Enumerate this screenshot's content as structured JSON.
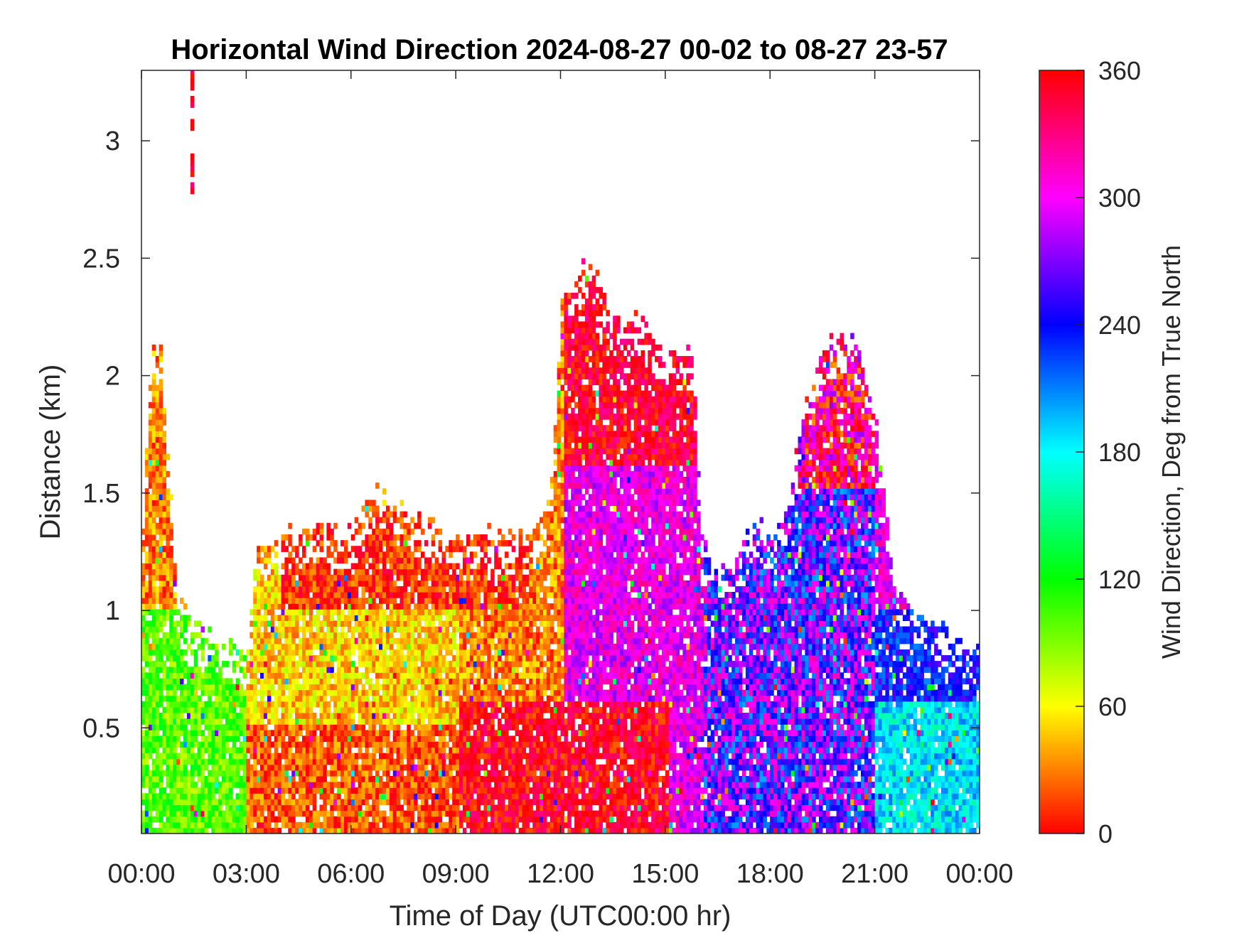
{
  "chart_data": {
    "type": "heatmap",
    "title": "Horizontal Wind Direction 2024-08-27 00-02 to 08-27 23-57",
    "xlabel": "Time of Day (UTC00:00 hr)",
    "ylabel": "Distance (km)",
    "xlim": [
      0,
      24
    ],
    "ylim": [
      0.05,
      3.3
    ],
    "x_ticks": [
      0,
      3,
      6,
      9,
      12,
      15,
      18,
      21,
      24
    ],
    "x_tick_labels": [
      "00:00",
      "03:00",
      "06:00",
      "09:00",
      "12:00",
      "15:00",
      "18:00",
      "21:00",
      "00:00"
    ],
    "y_ticks": [
      0.5,
      1,
      1.5,
      2,
      2.5,
      3
    ],
    "y_tick_labels": [
      "0.5",
      "1",
      "1.5",
      "2",
      "2.5",
      "3"
    ],
    "colorbar": {
      "label": "Wind Direction, Deg from True North",
      "range": [
        0,
        360
      ],
      "ticks": [
        0,
        60,
        120,
        180,
        240,
        300,
        360
      ],
      "tick_labels": [
        "0",
        "60",
        "120",
        "180",
        "240",
        "300",
        "360"
      ],
      "colormap": "hsv"
    },
    "data_top_km_by_hour": [
      [
        0.0,
        1.35
      ],
      [
        0.25,
        2.1
      ],
      [
        0.5,
        2.1
      ],
      [
        0.75,
        1.55
      ],
      [
        1.0,
        1.0
      ],
      [
        1.5,
        0.9
      ],
      [
        2.0,
        0.85
      ],
      [
        3.0,
        0.8
      ],
      [
        3.25,
        1.25
      ],
      [
        4.0,
        1.3
      ],
      [
        5.0,
        1.35
      ],
      [
        6.0,
        1.3
      ],
      [
        6.5,
        1.5
      ],
      [
        7.0,
        1.45
      ],
      [
        8.0,
        1.35
      ],
      [
        9.0,
        1.32
      ],
      [
        10.0,
        1.3
      ],
      [
        11.0,
        1.3
      ],
      [
        11.5,
        1.4
      ],
      [
        11.75,
        1.6
      ],
      [
        12.0,
        2.35
      ],
      [
        12.75,
        2.45
      ],
      [
        13.5,
        2.25
      ],
      [
        14.25,
        2.2
      ],
      [
        15.0,
        2.1
      ],
      [
        15.75,
        2.05
      ],
      [
        16.0,
        1.25
      ],
      [
        16.5,
        1.15
      ],
      [
        17.0,
        1.2
      ],
      [
        17.5,
        1.35
      ],
      [
        18.0,
        1.3
      ],
      [
        18.5,
        1.45
      ],
      [
        19.0,
        1.9
      ],
      [
        19.5,
        2.1
      ],
      [
        20.0,
        2.15
      ],
      [
        20.5,
        2.1
      ],
      [
        21.0,
        1.8
      ],
      [
        21.5,
        1.1
      ],
      [
        22.0,
        1.0
      ],
      [
        22.5,
        0.95
      ],
      [
        23.0,
        0.9
      ],
      [
        23.5,
        0.8
      ],
      [
        24.0,
        0.85
      ]
    ],
    "dominant_direction_deg_regions": [
      {
        "hours": [
          0,
          3
        ],
        "km": [
          0.05,
          1.0
        ],
        "deg": 100
      },
      {
        "hours": [
          3,
          9
        ],
        "km": [
          0.5,
          1.2
        ],
        "deg": 50
      },
      {
        "hours": [
          3,
          9
        ],
        "km": [
          0.05,
          0.5
        ],
        "deg": 20
      },
      {
        "hours": [
          4,
          11
        ],
        "km": [
          1.0,
          1.4
        ],
        "deg": 10
      },
      {
        "hours": [
          9,
          12
        ],
        "km": [
          0.05,
          0.6
        ],
        "deg": 355
      },
      {
        "hours": [
          12,
          16
        ],
        "km": [
          1.6,
          2.5
        ],
        "deg": 350
      },
      {
        "hours": [
          12,
          16
        ],
        "km": [
          0.6,
          1.6
        ],
        "deg": 300
      },
      {
        "hours": [
          12,
          15
        ],
        "km": [
          0.05,
          0.6
        ],
        "deg": 355
      },
      {
        "hours": [
          16,
          21
        ],
        "km": [
          0.05,
          1.5
        ],
        "deg": 260
      },
      {
        "hours": [
          19,
          21
        ],
        "km": [
          1.5,
          2.15
        ],
        "deg": 335
      },
      {
        "hours": [
          21,
          24
        ],
        "km": [
          0.6,
          1.0
        ],
        "deg": 235
      },
      {
        "hours": [
          21,
          24
        ],
        "km": [
          0.05,
          0.6
        ],
        "deg": 185
      }
    ]
  }
}
